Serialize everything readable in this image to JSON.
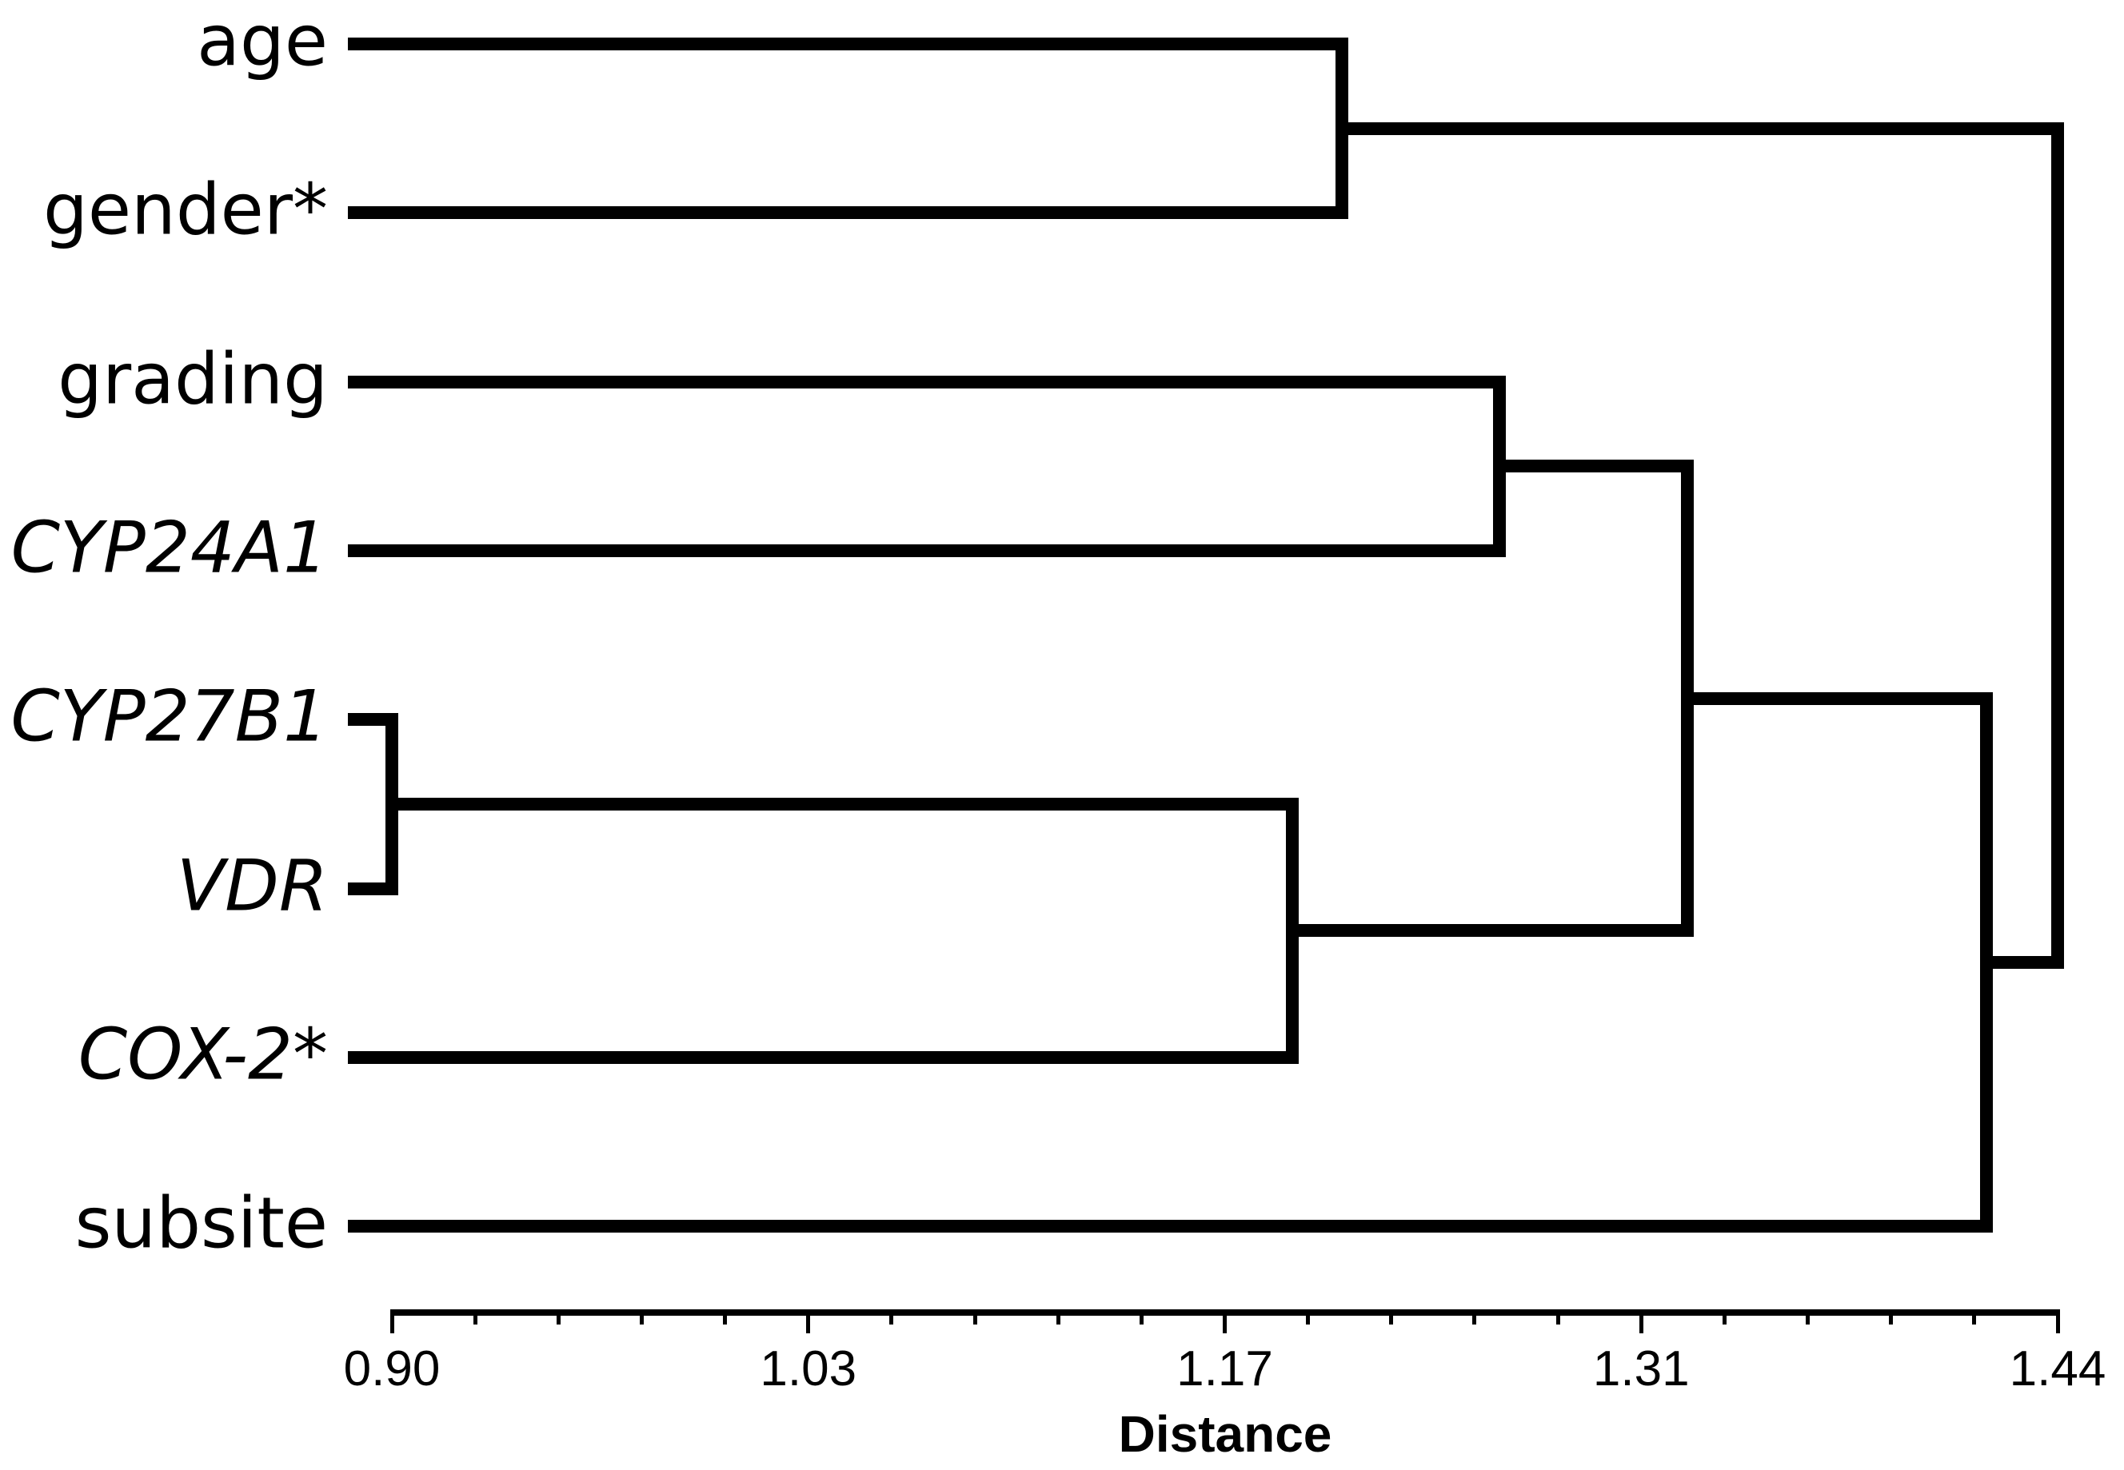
{
  "figure": {
    "background_color": "#ffffff",
    "line_color": "#000000"
  },
  "chart_data": {
    "type": "dendrogram",
    "orientation": "horizontal",
    "title": "",
    "xlabel": "Distance",
    "x_axis": {
      "min": 0.9,
      "max": 1.44,
      "major_tick_values": [
        0.9,
        1.035,
        1.17,
        1.305,
        1.44
      ],
      "major_tick_labels": [
        "0.90",
        "1.03",
        "1.17",
        "1.31",
        "1.44"
      ],
      "minor_intervals_per_major": 5,
      "grid": false
    },
    "leaves": [
      {
        "label": "age",
        "italic": false
      },
      {
        "label": "gender*",
        "italic": false
      },
      {
        "label": "grading",
        "italic": false
      },
      {
        "label": "CYP24A1",
        "italic": true
      },
      {
        "label": "CYP27B1",
        "italic": true
      },
      {
        "label": "VDR",
        "italic": true
      },
      {
        "label": "COX-2*",
        "italic": true
      },
      {
        "label": "subsite",
        "italic": false
      }
    ],
    "merges": [
      {
        "id": 8,
        "children": [
          4,
          5
        ],
        "distance": 0.9,
        "note": "CYP27B1 + VDR"
      },
      {
        "id": 9,
        "children": [
          8,
          6
        ],
        "distance": 1.192,
        "note": "(CYP27B1,VDR) + COX-2*"
      },
      {
        "id": 10,
        "children": [
          0,
          1
        ],
        "distance": 1.208,
        "note": "age + gender*"
      },
      {
        "id": 11,
        "children": [
          2,
          3
        ],
        "distance": 1.259,
        "note": "grading + CYP24A1"
      },
      {
        "id": 12,
        "children": [
          11,
          9
        ],
        "distance": 1.32,
        "note": "(grading,CYP24A1) + (CYP27B1,VDR,COX-2*)"
      },
      {
        "id": 13,
        "children": [
          12,
          7
        ],
        "distance": 1.417,
        "note": "cluster + subsite"
      },
      {
        "id": 14,
        "children": [
          10,
          13
        ],
        "distance": 1.44,
        "note": "root"
      }
    ]
  }
}
